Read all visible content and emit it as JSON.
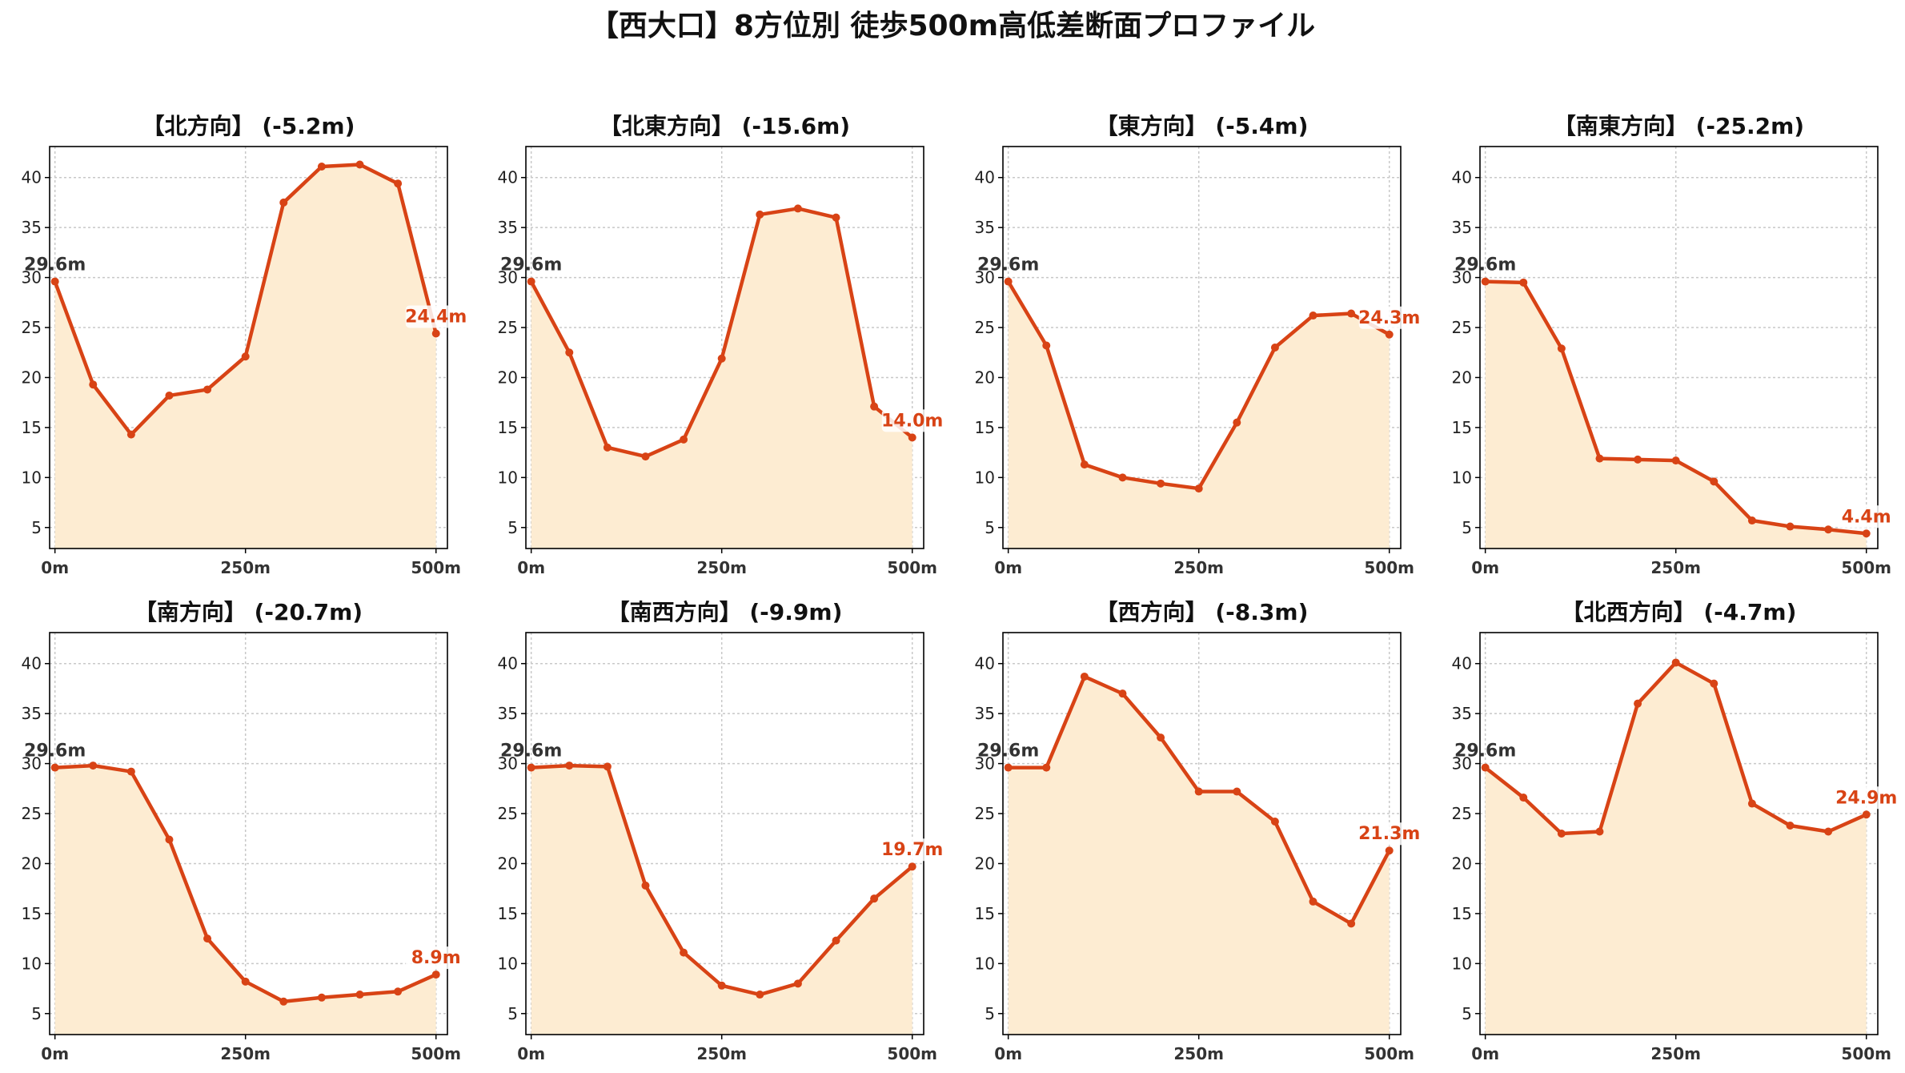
{
  "suptitle": "【西大口】8方位別 徒歩500m高低差断面プロファイル",
  "colors": {
    "line": "#d84315",
    "fill": "#fdecd2",
    "start_label": "#333333",
    "end_label": "#d84315"
  },
  "chart_data": [
    {
      "type": "area",
      "title": "【北方向】 (-5.2m)",
      "x": [
        0,
        50,
        100,
        150,
        200,
        250,
        300,
        350,
        400,
        450,
        500
      ],
      "y": [
        29.6,
        19.3,
        14.3,
        18.2,
        18.8,
        22.1,
        37.5,
        41.1,
        41.3,
        39.4,
        24.4
      ],
      "start_label": "29.6m",
      "end_label": "24.4m",
      "xticks": [
        "0m",
        "250m",
        "500m"
      ],
      "yticks": [
        5,
        10,
        15,
        20,
        25,
        30,
        35,
        40
      ],
      "xlim": [
        -7,
        515
      ],
      "ylim": [
        2.9,
        43.1
      ],
      "grid": true
    },
    {
      "type": "area",
      "title": "【北東方向】 (-15.6m)",
      "x": [
        0,
        50,
        100,
        150,
        200,
        250,
        300,
        350,
        400,
        450,
        500
      ],
      "y": [
        29.6,
        22.5,
        13.0,
        12.1,
        13.8,
        21.9,
        36.3,
        36.9,
        36.0,
        17.1,
        14.0
      ],
      "start_label": "29.6m",
      "end_label": "14.0m",
      "xticks": [
        "0m",
        "250m",
        "500m"
      ],
      "yticks": [
        5,
        10,
        15,
        20,
        25,
        30,
        35,
        40
      ],
      "xlim": [
        -7,
        515
      ],
      "ylim": [
        2.9,
        43.1
      ],
      "grid": true
    },
    {
      "type": "area",
      "title": "【東方向】 (-5.4m)",
      "x": [
        0,
        50,
        100,
        150,
        200,
        250,
        300,
        350,
        400,
        450,
        500
      ],
      "y": [
        29.6,
        23.2,
        11.3,
        10.0,
        9.4,
        8.9,
        15.5,
        23.0,
        26.2,
        26.4,
        24.3
      ],
      "start_label": "29.6m",
      "end_label": "24.3m",
      "xticks": [
        "0m",
        "250m",
        "500m"
      ],
      "yticks": [
        5,
        10,
        15,
        20,
        25,
        30,
        35,
        40
      ],
      "xlim": [
        -7,
        515
      ],
      "ylim": [
        2.9,
        43.1
      ],
      "grid": true
    },
    {
      "type": "area",
      "title": "【南東方向】 (-25.2m)",
      "x": [
        0,
        50,
        100,
        150,
        200,
        250,
        300,
        350,
        400,
        450,
        500
      ],
      "y": [
        29.6,
        29.5,
        22.9,
        11.9,
        11.8,
        11.7,
        9.6,
        5.7,
        5.1,
        4.8,
        4.4
      ],
      "start_label": "29.6m",
      "end_label": "4.4m",
      "xticks": [
        "0m",
        "250m",
        "500m"
      ],
      "yticks": [
        5,
        10,
        15,
        20,
        25,
        30,
        35,
        40
      ],
      "xlim": [
        -7,
        515
      ],
      "ylim": [
        2.9,
        43.1
      ],
      "grid": true
    },
    {
      "type": "area",
      "title": "【南方向】 (-20.7m)",
      "x": [
        0,
        50,
        100,
        150,
        200,
        250,
        300,
        350,
        400,
        450,
        500
      ],
      "y": [
        29.6,
        29.8,
        29.2,
        22.4,
        12.5,
        8.2,
        6.2,
        6.6,
        6.9,
        7.2,
        8.9
      ],
      "start_label": "29.6m",
      "end_label": "8.9m",
      "xticks": [
        "0m",
        "250m",
        "500m"
      ],
      "yticks": [
        5,
        10,
        15,
        20,
        25,
        30,
        35,
        40
      ],
      "xlim": [
        -7,
        515
      ],
      "ylim": [
        2.9,
        43.1
      ],
      "grid": true
    },
    {
      "type": "area",
      "title": "【南西方向】 (-9.9m)",
      "x": [
        0,
        50,
        100,
        150,
        200,
        250,
        300,
        350,
        400,
        450,
        500
      ],
      "y": [
        29.6,
        29.8,
        29.7,
        17.8,
        11.1,
        7.8,
        6.9,
        8.0,
        12.3,
        16.5,
        19.7
      ],
      "start_label": "29.6m",
      "end_label": "19.7m",
      "xticks": [
        "0m",
        "250m",
        "500m"
      ],
      "yticks": [
        5,
        10,
        15,
        20,
        25,
        30,
        35,
        40
      ],
      "xlim": [
        -7,
        515
      ],
      "ylim": [
        2.9,
        43.1
      ],
      "grid": true
    },
    {
      "type": "area",
      "title": "【西方向】 (-8.3m)",
      "x": [
        0,
        50,
        100,
        150,
        200,
        250,
        300,
        350,
        400,
        450,
        500
      ],
      "y": [
        29.6,
        29.6,
        38.7,
        37.0,
        32.6,
        27.2,
        27.2,
        24.2,
        16.2,
        14.0,
        21.3
      ],
      "start_label": "29.6m",
      "end_label": "21.3m",
      "xticks": [
        "0m",
        "250m",
        "500m"
      ],
      "yticks": [
        5,
        10,
        15,
        20,
        25,
        30,
        35,
        40
      ],
      "xlim": [
        -7,
        515
      ],
      "ylim": [
        2.9,
        43.1
      ],
      "grid": true
    },
    {
      "type": "area",
      "title": "【北西方向】 (-4.7m)",
      "x": [
        0,
        50,
        100,
        150,
        200,
        250,
        300,
        350,
        400,
        450,
        500
      ],
      "y": [
        29.6,
        26.6,
        23.0,
        23.2,
        36.0,
        40.1,
        38.0,
        26.0,
        23.8,
        23.2,
        24.9
      ],
      "start_label": "29.6m",
      "end_label": "24.9m",
      "xticks": [
        "0m",
        "250m",
        "500m"
      ],
      "yticks": [
        5,
        10,
        15,
        20,
        25,
        30,
        35,
        40
      ],
      "xlim": [
        -7,
        515
      ],
      "ylim": [
        2.9,
        43.1
      ],
      "grid": true
    }
  ]
}
